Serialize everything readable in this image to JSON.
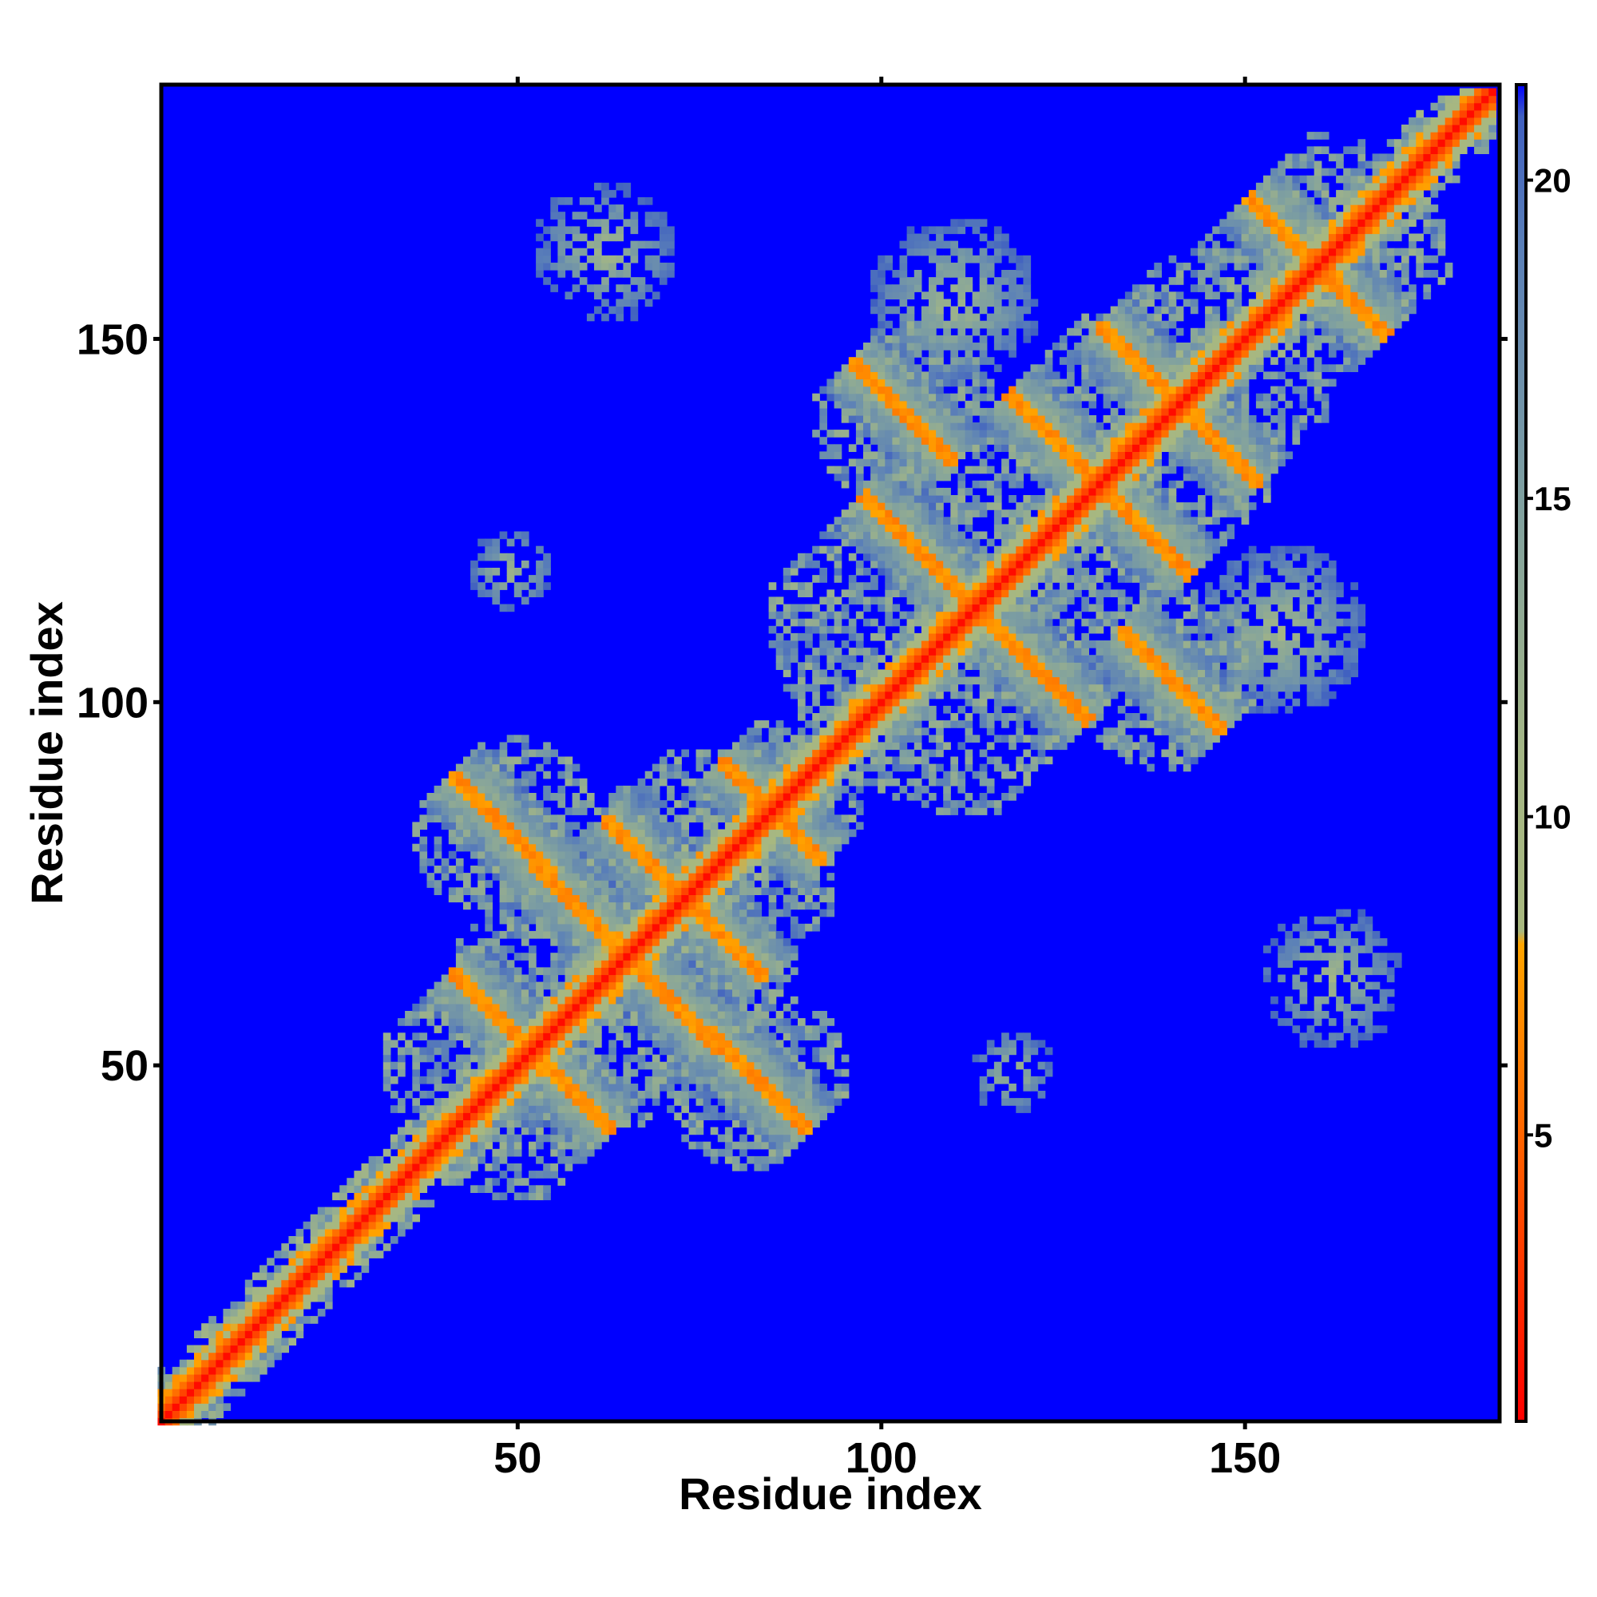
{
  "chart_data": {
    "type": "heatmap",
    "title": "",
    "xlabel": "Residue index",
    "ylabel": "Residue index",
    "xlim": [
      1,
      185
    ],
    "ylim": [
      1,
      185
    ],
    "x_ticks": [
      50,
      100,
      150
    ],
    "y_ticks": [
      50,
      100,
      150
    ],
    "x_tick_labels": [
      "50",
      "100",
      "150"
    ],
    "y_tick_labels": [
      "50",
      "100",
      "150"
    ],
    "n_residues": 184,
    "colorbar": {
      "range": [
        0.5,
        21.5
      ],
      "ticks": [
        5,
        10,
        15,
        20
      ],
      "tick_labels": [
        "5",
        "10",
        "15",
        "20"
      ],
      "stops": [
        {
          "value": 0.5,
          "color": "#ff0000"
        },
        {
          "value": 4.5,
          "color": "#ff5a00"
        },
        {
          "value": 8.0,
          "color": "#ffa500"
        },
        {
          "value": 8.2,
          "color": "#a8b87f"
        },
        {
          "value": 11.0,
          "color": "#a4b685"
        },
        {
          "value": 15.0,
          "color": "#7fa0a0"
        },
        {
          "value": 19.0,
          "color": "#5a7fb8"
        },
        {
          "value": 21.0,
          "color": "#4060c0"
        },
        {
          "value": 21.5,
          "color": "#0000ff"
        }
      ]
    },
    "background_color": "#0000ff",
    "diagonal_color": "#ff0000",
    "contact_features": [
      {
        "x": 73,
        "y": 73,
        "kind": "antidiagonal",
        "length": 16,
        "intensity": 1.0
      },
      {
        "x": 52,
        "y": 52,
        "kind": "antidiagonal",
        "length": 16,
        "intensity": 1.0
      },
      {
        "x": 65,
        "y": 65,
        "kind": "antidiagonal",
        "length": 18,
        "intensity": 1.0
      },
      {
        "x": 113,
        "y": 113,
        "kind": "antidiagonal",
        "length": 22,
        "intensity": 1.0
      },
      {
        "x": 141,
        "y": 141,
        "kind": "antidiagonal",
        "length": 16,
        "intensity": 1.0
      },
      {
        "x": 130,
        "y": 130,
        "kind": "antidiagonal",
        "length": 18,
        "intensity": 1.0
      },
      {
        "x": 160,
        "y": 160,
        "kind": "antidiagonal",
        "length": 14,
        "intensity": 0.8
      },
      {
        "x": 85,
        "y": 85,
        "kind": "antidiagonal",
        "length": 10,
        "intensity": 0.8
      },
      {
        "x": 48,
        "y": 83,
        "kind": "antidiagonal",
        "length": 10,
        "intensity": 0.9
      },
      {
        "x": 83,
        "y": 48,
        "kind": "antidiagonal",
        "length": 10,
        "intensity": 0.9
      },
      {
        "x": 140,
        "y": 103,
        "kind": "antidiagonal",
        "length": 10,
        "intensity": 0.9
      },
      {
        "x": 103,
        "y": 140,
        "kind": "antidiagonal",
        "length": 10,
        "intensity": 0.9
      },
      {
        "x": 110,
        "y": 155,
        "kind": "blob",
        "length": 12,
        "intensity": 0.7
      },
      {
        "x": 155,
        "y": 110,
        "kind": "blob",
        "length": 12,
        "intensity": 0.7
      },
      {
        "x": 62,
        "y": 162,
        "kind": "blob",
        "length": 10,
        "intensity": 0.5
      },
      {
        "x": 162,
        "y": 62,
        "kind": "blob",
        "length": 10,
        "intensity": 0.5
      },
      {
        "x": 49,
        "y": 118,
        "kind": "blob",
        "length": 6,
        "intensity": 0.5
      },
      {
        "x": 118,
        "y": 49,
        "kind": "blob",
        "length": 6,
        "intensity": 0.5
      }
    ]
  }
}
